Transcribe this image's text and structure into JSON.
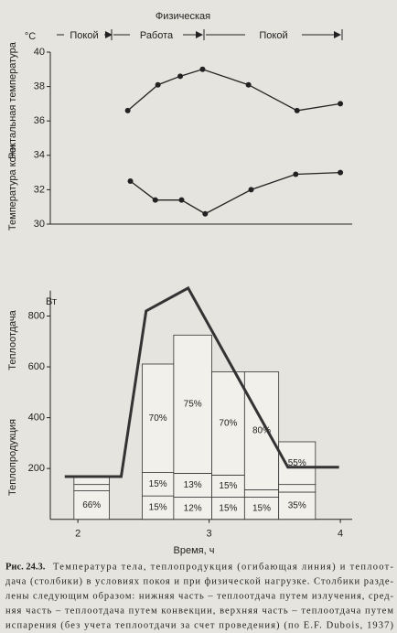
{
  "chart_data": [
    {
      "type": "line",
      "unit": "°C",
      "ylabels": [
        "Ректальная температура",
        "Температура кожи"
      ],
      "phases": [
        "Физическая",
        "Покой",
        "Работа",
        "Покой"
      ],
      "xlim": [
        1.79,
        4.09
      ],
      "ylim": [
        30,
        40
      ],
      "yticks": [
        30,
        32,
        34,
        36,
        38,
        40
      ],
      "series": [
        {
          "color": "#222222",
          "x": [
            2.38,
            2.61,
            2.78,
            2.95,
            3.3,
            3.67,
            4.0
          ],
          "values": [
            36.6,
            38.1,
            38.6,
            39.0,
            38.1,
            36.6,
            37.0
          ]
        },
        {
          "color": "#222222",
          "x": [
            2.4,
            2.59,
            2.79,
            2.97,
            3.32,
            3.66,
            4.0
          ],
          "values": [
            32.5,
            31.4,
            31.4,
            30.6,
            32.0,
            32.9,
            33.0
          ]
        }
      ]
    },
    {
      "type": "bar",
      "unit": "Вт",
      "ylabels": [
        "Теплоотдача",
        "Теплопродукция"
      ],
      "xlabel": "Время, ч",
      "xlim": [
        1.79,
        4.09
      ],
      "xticks": [
        2,
        3,
        4
      ],
      "ylim": [
        0,
        900
      ],
      "yticks": [
        200,
        400,
        600,
        800
      ],
      "bins": [
        [
          1.97,
          2.24
        ],
        [
          2.49,
          2.73
        ],
        [
          2.73,
          3.02
        ],
        [
          3.02,
          3.27
        ],
        [
          3.27,
          3.53
        ],
        [
          3.53,
          3.81
        ]
      ],
      "series": [
        {
          "color": "#f2f0ea",
          "values": [
            112,
            92,
            87,
            87,
            87,
            107
          ],
          "labels": [
            "66%",
            "15%",
            "12%",
            "15%",
            "15%",
            "35%"
          ]
        },
        {
          "color": "#f2f0ea",
          "values": [
            25,
            92,
            94,
            87,
            29,
            30
          ],
          "labels": [
            null,
            "15%",
            "13%",
            "15%",
            null,
            null
          ]
        },
        {
          "color": "#f2f0ea",
          "values": [
            33,
            427,
            544,
            406,
            464,
            168
          ],
          "labels": [
            null,
            "70%",
            "75%",
            "70%",
            "80%",
            "55%"
          ]
        }
      ],
      "line": {
        "color": "#333333",
        "x": [
          1.9,
          2.33,
          2.52,
          2.84,
          3.6,
          3.99
        ],
        "values": [
          168,
          168,
          820,
          910,
          205,
          205
        ]
      }
    }
  ],
  "caption": {
    "label": "Рис. 24.3.",
    "lines": [
      "Температура тела, теплопродукция (огибающая линия) и теплоот-",
      "дача (столбики) в условиях покоя и при физической нагрузке. Столбики разде-",
      "лены следующим образом: нижняя часть – теплоотдача путем излучения, сред-",
      "няя часть – теплоотдача путем конвекции, верхняя часть – теплоотдача путем",
      "испарения (без учета теплоотдачи за счет проведения) (по E.F. Dubois, 1937)"
    ]
  }
}
